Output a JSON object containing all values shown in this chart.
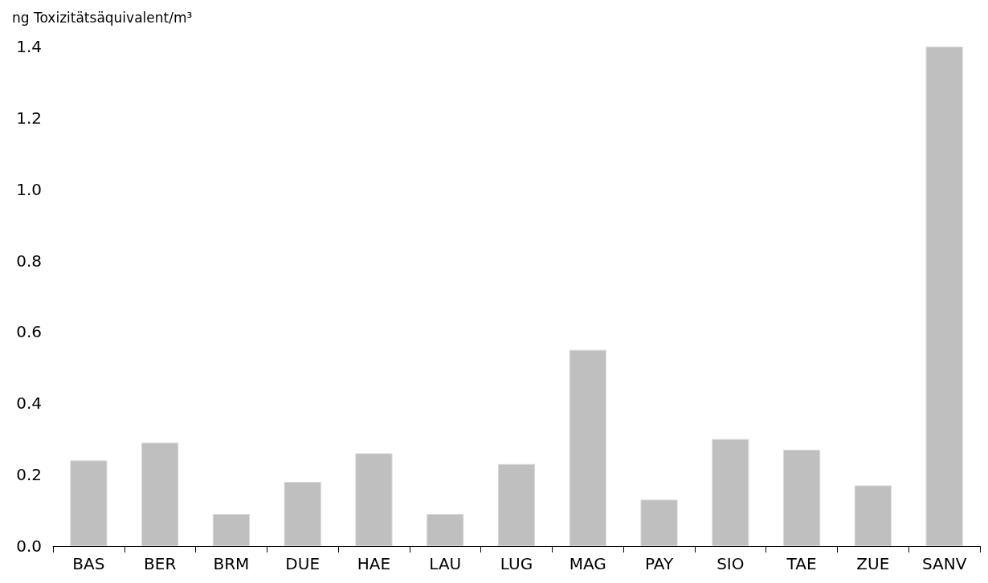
{
  "chart_data": {
    "type": "bar",
    "ylabel": "ng Toxizitätsäquivalent/m³",
    "categories": [
      "BAS",
      "BER",
      "BRM",
      "DUE",
      "HAE",
      "LAU",
      "LUG",
      "MAG",
      "PAY",
      "SIO",
      "TAE",
      "ZUE",
      "SANV"
    ],
    "values": [
      0.24,
      0.29,
      0.09,
      0.18,
      0.26,
      0.09,
      0.23,
      0.55,
      0.13,
      0.3,
      0.27,
      0.17,
      1.4
    ],
    "color": "#bfbfbf",
    "ylim": [
      0,
      1.4
    ],
    "yticks": [
      {
        "value": 0,
        "label": "0.0"
      },
      {
        "value": 0.2,
        "label": "0.2"
      },
      {
        "value": 0.4,
        "label": "0.4"
      },
      {
        "value": 0.6,
        "label": "0.6"
      },
      {
        "value": 0.8,
        "label": "0.8"
      },
      {
        "value": 1,
        "label": "1.0"
      },
      {
        "value": 1.2,
        "label": "1.2"
      },
      {
        "value": 1.4,
        "label": "1.4"
      }
    ],
    "grid": false
  }
}
